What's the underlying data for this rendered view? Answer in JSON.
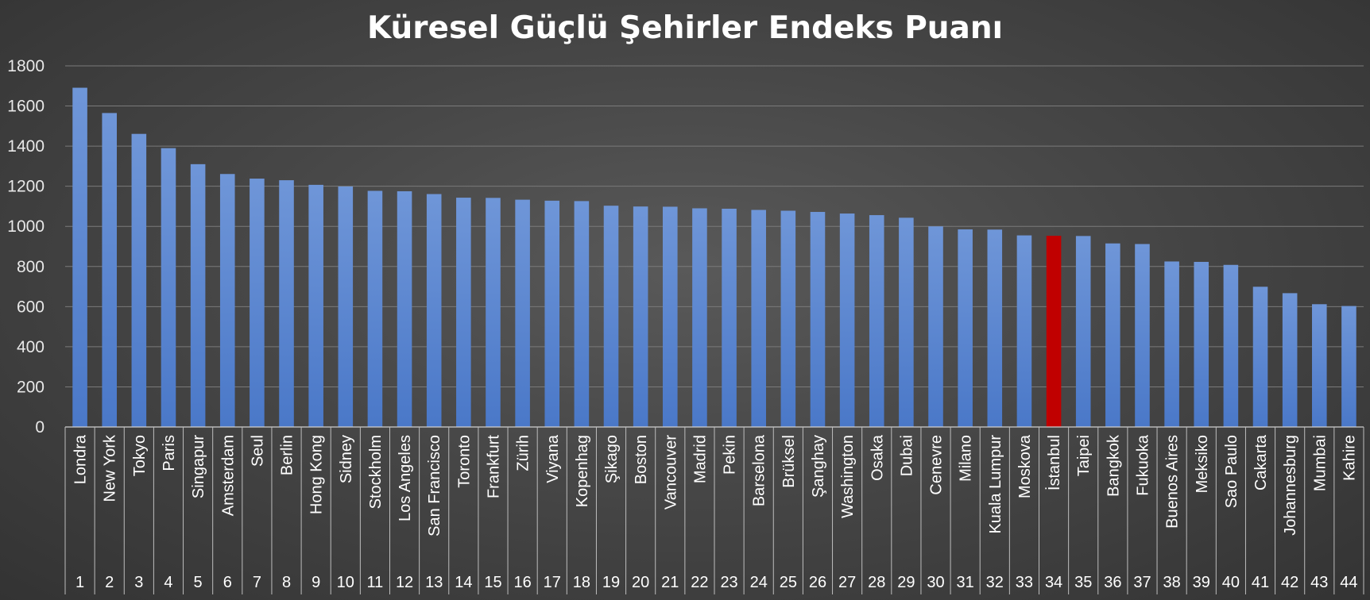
{
  "chart_data": {
    "type": "bar",
    "title": "Küresel Güçlü Şehirler Endeks Puanı",
    "ylim": [
      0,
      1800
    ],
    "yticks": [
      0,
      200,
      400,
      600,
      800,
      1000,
      1200,
      1400,
      1600,
      1800
    ],
    "grid": true,
    "legend": "none",
    "bar_color": "#4a78c8",
    "highlight_color": "#c00000",
    "highlight_category": "İstanbul",
    "categories": [
      "Londra",
      "New York",
      "Tokyo",
      "Paris",
      "Singapur",
      "Amsterdam",
      "Seul",
      "Berlin",
      "Hong Kong",
      "Sidney",
      "Stockholm",
      "Los Angeles",
      "San Francisco",
      "Toronto",
      "Frankfurt",
      "Zürih",
      "Viyana",
      "Kopenhag",
      "Şikago",
      "Boston",
      "Vancouver",
      "Madrid",
      "Pekin",
      "Barselona",
      "Brüksel",
      "Şanghay",
      "Washington",
      "Osaka",
      "Dubai",
      "Cenevre",
      "Milano",
      "Kuala Lumpur",
      "Moskova",
      "İstanbul",
      "Taipei",
      "Bangkok",
      "Fukuoka",
      "Buenos Aires",
      "Meksiko",
      "Sao Paulo",
      "Cakarta",
      "Johannesburg",
      "Mumbai",
      "Kahire"
    ],
    "ranks": [
      "1",
      "2",
      "3",
      "4",
      "5",
      "6",
      "7",
      "8",
      "9",
      "10",
      "11",
      "12",
      "13",
      "14",
      "15",
      "16",
      "17",
      "18",
      "19",
      "20",
      "21",
      "22",
      "23",
      "24",
      "25",
      "26",
      "27",
      "28",
      "29",
      "30",
      "31",
      "32",
      "33",
      "34",
      "35",
      "36",
      "37",
      "38",
      "39",
      "40",
      "41",
      "42",
      "43",
      "44"
    ],
    "values": [
      1691,
      1565,
      1461,
      1390,
      1310,
      1261,
      1238,
      1230,
      1207,
      1199,
      1177,
      1175,
      1161,
      1143,
      1142,
      1133,
      1128,
      1126,
      1103,
      1099,
      1098,
      1090,
      1088,
      1082,
      1078,
      1072,
      1064,
      1056,
      1043,
      1000,
      985,
      984,
      955,
      953,
      952,
      915,
      912,
      825,
      823,
      808,
      699,
      667,
      612,
      603
    ]
  }
}
